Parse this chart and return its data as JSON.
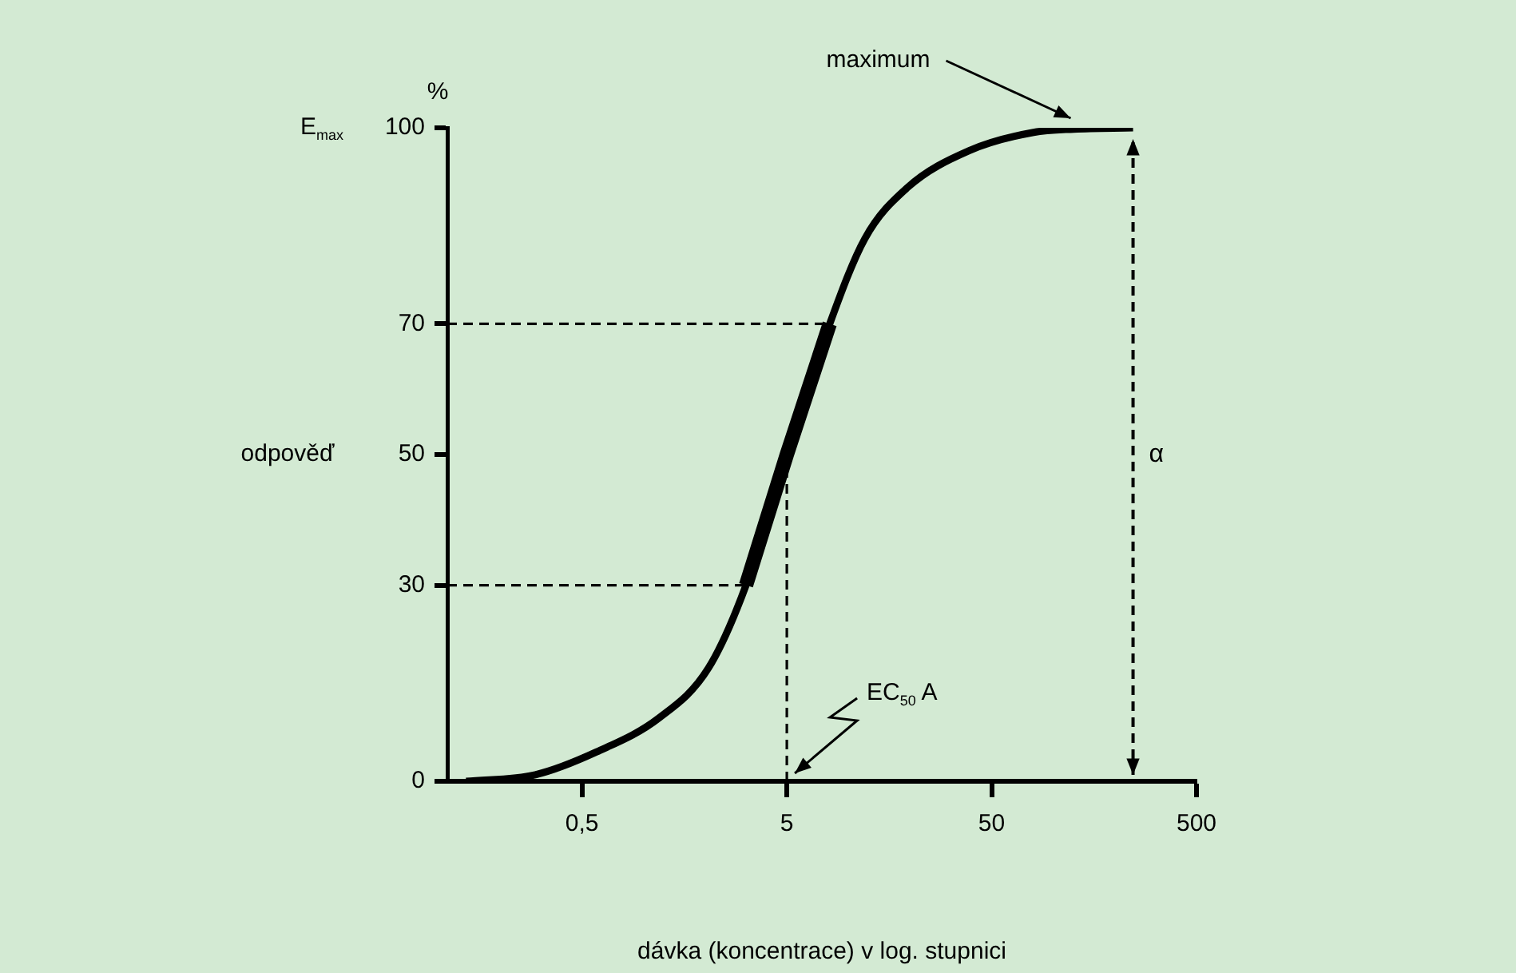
{
  "chart_data": {
    "type": "line",
    "xlabel": "dávka (koncentrace) v log. stupnici",
    "ylabel": "odpověď",
    "log": "x",
    "xlim": [
      0.11,
      500
    ],
    "xticks": [
      {
        "value": 0.5,
        "label": "0,5"
      },
      5,
      50,
      500
    ],
    "ylim": [
      0,
      100
    ],
    "yticks": [
      0,
      30,
      50,
      70,
      100
    ],
    "grid": false,
    "legend": false,
    "marker": "none",
    "series": [
      {
        "color": "#000000",
        "x": [
          0.136,
          0.296,
          0.59,
          1.19,
          2.07,
          3.16,
          5,
          8.1,
          12,
          19.3,
          38.8,
          80,
          126,
          245
        ],
        "values": [
          0,
          1,
          4.5,
          9.7,
          17.3,
          30,
          50,
          70,
          83,
          90.8,
          96.5,
          99.3,
          99.8,
          100
        ]
      },
      {
        "color": "#000000",
        "x": [
          3.16,
          5,
          8.1
        ],
        "values": [
          30,
          50,
          70
        ]
      },
      {
        "color": "#000000",
        "line_style": "dashed",
        "x": [
          0.11,
          3.16
        ],
        "values": [
          30,
          30
        ]
      },
      {
        "color": "#000000",
        "line_style": "dashed",
        "x": [
          0.11,
          8.1
        ],
        "values": [
          70,
          70
        ]
      },
      {
        "color": "#000000",
        "line_style": "dashed",
        "x": [
          5,
          5
        ],
        "values": [
          0,
          50
        ]
      }
    ],
    "annotations": [
      "%",
      "E$_{max}$",
      {
        "text": "maximum",
        "x": 126,
        "y": 100
      },
      {
        "text": "EC$_{50}$ A",
        "x": 5,
        "y": 0
      }
    ],
    "ref_lines": [
      {
        "axis": "x",
        "value": 245,
        "label": "α",
        "color": "#000000",
        "line_style": "dashed"
      }
    ]
  }
}
